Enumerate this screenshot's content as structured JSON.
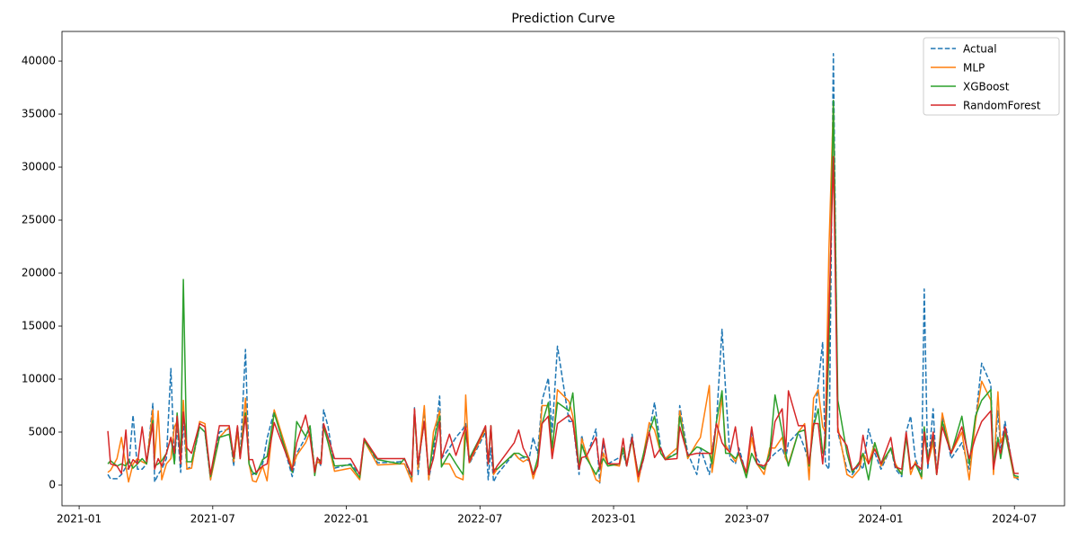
{
  "chart_data": {
    "type": "line",
    "title": "Prediction Curve",
    "x": [
      1.29,
      1.41,
      1.7,
      1.9,
      2.1,
      2.22,
      2.42,
      2.62,
      2.83,
      3.03,
      3.31,
      3.39,
      3.55,
      3.71,
      3.92,
      4.12,
      4.28,
      4.4,
      4.56,
      4.68,
      4.84,
      5.05,
      5.41,
      5.65,
      5.9,
      6.3,
      6.74,
      6.94,
      7.11,
      7.23,
      7.47,
      7.63,
      7.79,
      7.95,
      8.24,
      8.44,
      8.76,
      9.57,
      9.77,
      10.17,
      10.37,
      10.58,
      10.7,
      10.86,
      10.98,
      11.18,
      11.47,
      12.19,
      12.6,
      12.8,
      13.4,
      14.41,
      14.61,
      14.94,
      15.06,
      15.22,
      15.5,
      15.7,
      15.91,
      16.19,
      16.27,
      16.63,
      16.92,
      17.24,
      17.36,
      17.52,
      18.25,
      18.37,
      18.49,
      18.61,
      18.77,
      19.54,
      19.74,
      19.94,
      20.19,
      20.39,
      20.59,
      20.79,
      21.07,
      21.24,
      21.48,
      22.0,
      22.17,
      22.45,
      22.57,
      22.77,
      23.21,
      23.38,
      23.54,
      23.74,
      24.26,
      24.43,
      24.59,
      24.83,
      25.11,
      25.35,
      25.6,
      25.84,
      26.12,
      26.32,
      26.85,
      26.97,
      27.33,
      27.74,
      27.9,
      28.3,
      28.42,
      28.62,
      28.87,
      29.03,
      29.23,
      29.47,
      29.63,
      29.96,
      30.2,
      30.44,
      30.76,
      31.01,
      31.25,
      31.57,
      31.73,
      31.85,
      32.3,
      32.58,
      32.78,
      32.98,
      33.19,
      33.39,
      33.51,
      33.67,
      33.87,
      34.07,
      34.48,
      34.72,
      35.04,
      35.2,
      35.45,
      35.73,
      36.01,
      36.45,
      36.66,
      36.94,
      37.14,
      37.34,
      37.55,
      37.83,
      37.95,
      38.11,
      38.35,
      38.51,
      38.76,
      39.16,
      39.64,
      39.97,
      40.25,
      40.53,
      40.94,
      41.06,
      41.26,
      41.38,
      41.58,
      41.99,
      42.19
    ],
    "series": [
      {
        "name": "Actual",
        "color": "#1f77b4",
        "linestyle": "dashed",
        "values": [
          1000,
          600,
          600,
          1000,
          1700,
          1500,
          6600,
          1500,
          1500,
          2000,
          7700,
          300,
          1000,
          1500,
          2500,
          11000,
          2000,
          5500,
          1200,
          6000,
          1500,
          1800,
          5500,
          5000,
          500,
          5000,
          5300,
          1800,
          5500,
          2500,
          12800,
          2000,
          1000,
          1200,
          2000,
          4400,
          7000,
          800,
          3000,
          4500,
          5500,
          1500,
          2500,
          1800,
          7100,
          5500,
          1600,
          2000,
          1000,
          4400,
          2100,
          2200,
          2500,
          500,
          7300,
          1000,
          7200,
          500,
          3000,
          8400,
          2500,
          3500,
          4500,
          5300,
          5800,
          2000,
          5000,
          500,
          3500,
          300,
          1000,
          3000,
          2500,
          2600,
          2300,
          4500,
          3000,
          8000,
          10100,
          5000,
          13100,
          6000,
          6000,
          1000,
          4700,
          2500,
          5300,
          200,
          4000,
          2000,
          2600,
          3000,
          1800,
          4800,
          500,
          2500,
          5000,
          7800,
          3500,
          2500,
          3000,
          7500,
          3000,
          1000,
          3500,
          1000,
          3200,
          6000,
          14700,
          9000,
          2500,
          2000,
          3500,
          1000,
          5000,
          2500,
          1500,
          2500,
          3000,
          3500,
          2500,
          4000,
          5000,
          3500,
          2000,
          5500,
          9500,
          13500,
          2000,
          1500,
          40700,
          5000,
          1500,
          1000,
          2000,
          1500,
          5300,
          3000,
          1500,
          3500,
          1500,
          800,
          5000,
          6500,
          2500,
          1000,
          18500,
          1500,
          7200,
          1000,
          6500,
          2500,
          4000,
          1500,
          6000,
          11500,
          9500,
          1500,
          7000,
          3500,
          6000,
          800,
          500
        ]
      },
      {
        "name": "MLP",
        "color": "#ff7f0e",
        "linestyle": "solid",
        "values": [
          1200,
          1400,
          2500,
          4500,
          1800,
          300,
          2000,
          2500,
          2200,
          2000,
          7100,
          2500,
          7000,
          500,
          2000,
          2500,
          5500,
          6000,
          2500,
          8000,
          1500,
          1600,
          6000,
          5800,
          500,
          4500,
          5500,
          2200,
          5000,
          2500,
          8200,
          2000,
          400,
          300,
          1800,
          400,
          7100,
          1600,
          2800,
          4000,
          5000,
          1500,
          2200,
          2000,
          5500,
          4000,
          1300,
          1600,
          500,
          4200,
          1900,
          2000,
          2000,
          300,
          7100,
          1500,
          7500,
          500,
          5000,
          7000,
          2000,
          2000,
          800,
          500,
          8500,
          2100,
          5300,
          2000,
          5500,
          1000,
          1500,
          3000,
          2500,
          2200,
          2500,
          600,
          2000,
          7500,
          7500,
          3000,
          9000,
          7900,
          6500,
          1500,
          4400,
          3000,
          500,
          300,
          3000,
          2000,
          1800,
          3500,
          2000,
          4300,
          300,
          3000,
          5900,
          5200,
          3000,
          2500,
          3500,
          7000,
          2500,
          4000,
          4500,
          9400,
          1200,
          4000,
          8300,
          3800,
          3000,
          2200,
          3000,
          800,
          4500,
          2000,
          1000,
          3500,
          3500,
          4500,
          2500,
          2000,
          5000,
          5800,
          500,
          8200,
          9000,
          5500,
          5000,
          22200,
          36000,
          5500,
          1000,
          700,
          1500,
          3000,
          2000,
          4000,
          1800,
          3500,
          2000,
          1000,
          4800,
          1000,
          2200,
          600,
          5000,
          2000,
          4000,
          1000,
          6800,
          3000,
          5000,
          500,
          6000,
          9800,
          8000,
          1000,
          8800,
          4000,
          5000,
          700,
          700
        ]
      },
      {
        "name": "XGBoost",
        "color": "#2ca02c",
        "linestyle": "solid",
        "values": [
          2000,
          2300,
          1800,
          2000,
          1800,
          2400,
          1600,
          2000,
          2500,
          2000,
          6100,
          1800,
          2000,
          2300,
          3000,
          4500,
          2000,
          6800,
          2500,
          19400,
          2200,
          2200,
          5500,
          5000,
          800,
          4500,
          4800,
          2500,
          5500,
          2800,
          6800,
          2000,
          1200,
          1000,
          2400,
          2700,
          6800,
          1200,
          6000,
          4600,
          5600,
          900,
          2500,
          2300,
          5500,
          4000,
          1800,
          1900,
          700,
          4200,
          2400,
          2000,
          2500,
          800,
          7000,
          2000,
          6000,
          1000,
          4000,
          6500,
          1700,
          3000,
          2000,
          1000,
          5000,
          2500,
          5500,
          2000,
          5600,
          1500,
          1500,
          3000,
          3000,
          2700,
          2600,
          1000,
          2500,
          5800,
          7800,
          3500,
          7800,
          7000,
          8700,
          1500,
          3800,
          2600,
          1000,
          1800,
          2500,
          1800,
          2000,
          3500,
          1800,
          4300,
          1000,
          3000,
          5000,
          6500,
          3000,
          2400,
          3000,
          6500,
          2700,
          3600,
          3500,
          3000,
          2000,
          6000,
          8900,
          3000,
          3000,
          2500,
          3000,
          700,
          3000,
          2000,
          1500,
          3000,
          8500,
          5000,
          3000,
          1800,
          5000,
          5200,
          1800,
          5500,
          7200,
          3000,
          3500,
          12700,
          36300,
          8000,
          3000,
          1200,
          2200,
          3000,
          500,
          4000,
          2000,
          3500,
          1800,
          1000,
          4500,
          1500,
          2000,
          800,
          5500,
          2500,
          4500,
          1000,
          6000,
          3000,
          6500,
          2000,
          6500,
          8000,
          9000,
          2000,
          4500,
          2500,
          5000,
          900,
          800
        ]
      },
      {
        "name": "RandomForest",
        "color": "#d62728",
        "linestyle": "solid",
        "values": [
          5100,
          2000,
          1800,
          1100,
          5200,
          1500,
          2400,
          2000,
          5500,
          2200,
          5800,
          1500,
          2500,
          1800,
          3000,
          4500,
          3000,
          6500,
          2000,
          6900,
          3500,
          3000,
          5800,
          5500,
          1000,
          5600,
          5600,
          2600,
          5600,
          2500,
          6500,
          2400,
          2400,
          1200,
          1800,
          2000,
          5900,
          1400,
          4000,
          6600,
          4500,
          1200,
          2600,
          2000,
          5800,
          4500,
          2500,
          2500,
          1000,
          4400,
          2500,
          2500,
          2500,
          900,
          7200,
          2000,
          6000,
          1000,
          2500,
          6000,
          2500,
          4800,
          2800,
          4800,
          5500,
          2200,
          5600,
          2000,
          5600,
          1200,
          1800,
          4000,
          5200,
          3500,
          2500,
          1000,
          1800,
          5800,
          6500,
          2500,
          5800,
          6600,
          6000,
          1500,
          2600,
          2700,
          4500,
          1500,
          4400,
          2000,
          2000,
          4400,
          1800,
          4500,
          800,
          2500,
          5000,
          2600,
          3500,
          2400,
          2500,
          5500,
          2800,
          3000,
          3000,
          3000,
          3000,
          5800,
          4000,
          3500,
          3100,
          5500,
          3000,
          1200,
          5500,
          2000,
          1800,
          2500,
          6000,
          7200,
          3200,
          8900,
          5600,
          5600,
          2000,
          5800,
          5800,
          2000,
          5000,
          16000,
          31000,
          5000,
          3700,
          1400,
          2000,
          4700,
          2000,
          3400,
          2000,
          4500,
          1700,
          1500,
          5000,
          1500,
          2000,
          1500,
          5000,
          2000,
          5000,
          1000,
          5500,
          3000,
          5500,
          2500,
          4500,
          6000,
          7000,
          1500,
          4000,
          3000,
          5500,
          1100,
          1100
        ]
      }
    ],
    "xlim": [
      -0.77,
      44.25
    ],
    "xticks": [
      {
        "value": 0,
        "label": "2021-01"
      },
      {
        "value": 6,
        "label": "2021-07"
      },
      {
        "value": 12,
        "label": "2022-01"
      },
      {
        "value": 18,
        "label": "2022-07"
      },
      {
        "value": 24,
        "label": "2023-01"
      },
      {
        "value": 30,
        "label": "2023-07"
      },
      {
        "value": 36,
        "label": "2024-01"
      },
      {
        "value": 42,
        "label": "2024-07"
      }
    ],
    "ylim": [
      -1950,
      42800
    ],
    "yticks": [
      0,
      5000,
      10000,
      15000,
      20000,
      25000,
      30000,
      35000,
      40000
    ],
    "grid": false,
    "legend": "upper right"
  }
}
